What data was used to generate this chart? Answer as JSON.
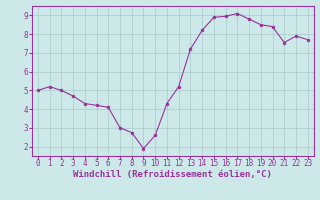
{
  "x": [
    0,
    1,
    2,
    3,
    4,
    5,
    6,
    7,
    8,
    9,
    10,
    11,
    12,
    13,
    14,
    15,
    16,
    17,
    18,
    19,
    20,
    21,
    22,
    23
  ],
  "y": [
    5.0,
    5.2,
    5.0,
    4.7,
    4.3,
    4.2,
    4.1,
    3.0,
    2.75,
    1.9,
    2.6,
    4.3,
    5.2,
    7.2,
    8.2,
    8.9,
    8.95,
    9.1,
    8.8,
    8.5,
    8.4,
    7.55,
    7.9,
    7.7
  ],
  "xlim": [
    -0.5,
    23.5
  ],
  "ylim": [
    1.5,
    9.5
  ],
  "xticks": [
    0,
    1,
    2,
    3,
    4,
    5,
    6,
    7,
    8,
    9,
    10,
    11,
    12,
    13,
    14,
    15,
    16,
    17,
    18,
    19,
    20,
    21,
    22,
    23
  ],
  "yticks": [
    2,
    3,
    4,
    5,
    6,
    7,
    8,
    9
  ],
  "xlabel": "Windchill (Refroidissement éolien,°C)",
  "line_color": "#993399",
  "marker_color": "#993399",
  "bg_color": "#cce8e8",
  "grid_color": "#aacccc",
  "spine_color": "#993399",
  "tick_label_fontsize": 5.5,
  "xlabel_fontsize": 6.5
}
